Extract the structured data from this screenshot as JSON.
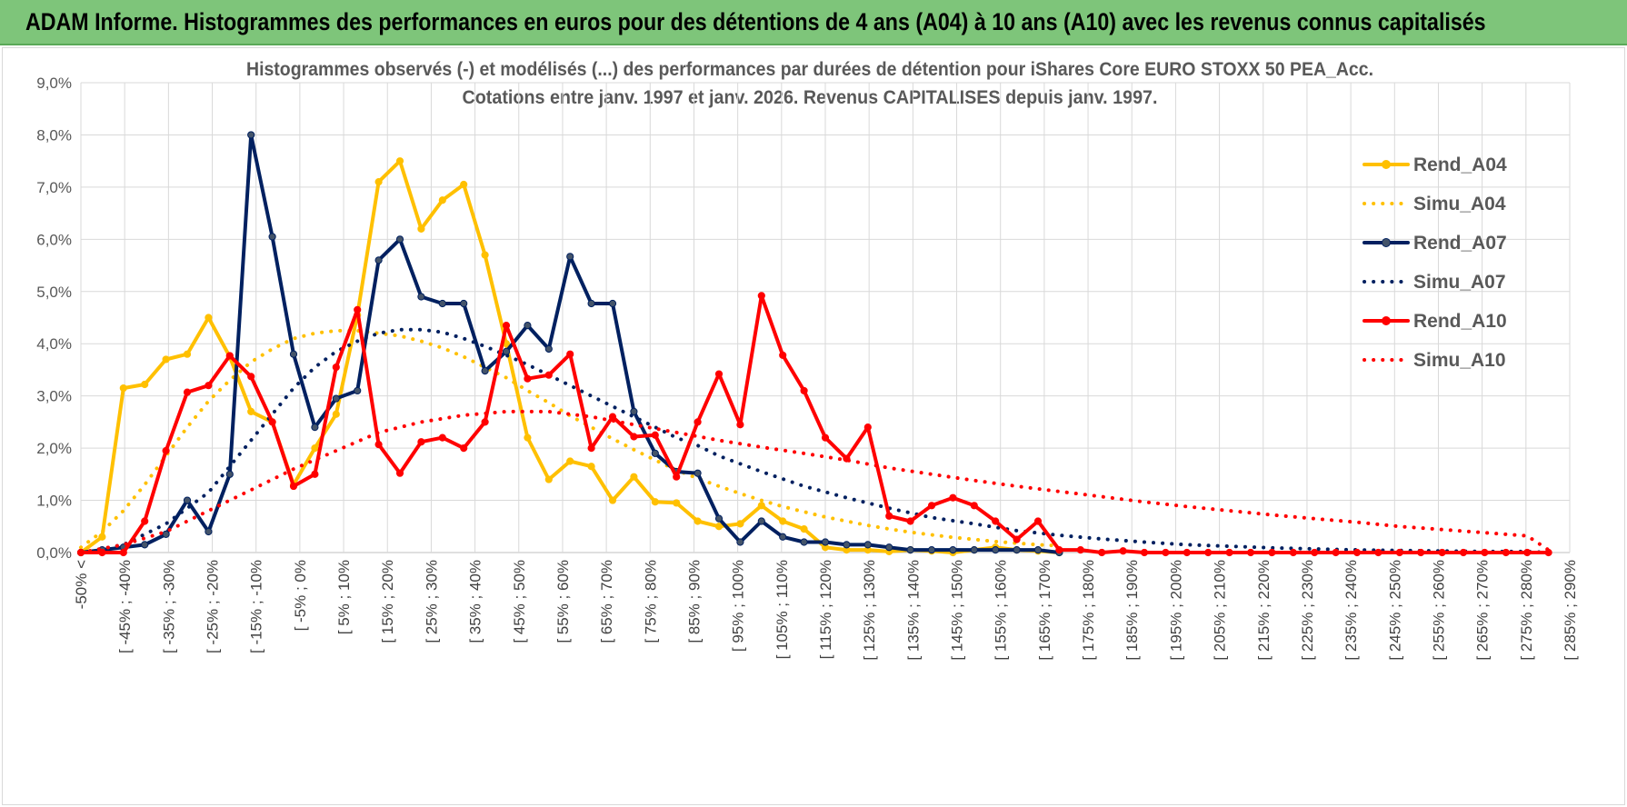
{
  "header": {
    "title": "ADAM Informe. Histogrammes des performances en euros pour des détentions de 4 ans (A04) à 10 ans (A10) avec les revenus connus capitalisés"
  },
  "chart_data": {
    "type": "line",
    "title": "Histogrammes observés (-) et modélisés (...) des performances par durées de détention pour iShares Core EURO STOXX 50 PEA_Acc.",
    "subtitle": "Cotations entre janv. 1997 et janv. 2026. Revenus CAPITALISES depuis janv. 1997.",
    "xlabel": "",
    "ylabel": "",
    "ylim": [
      0,
      9
    ],
    "y_ticks": [
      "0,0%",
      "1,0%",
      "2,0%",
      "3,0%",
      "4,0%",
      "5,0%",
      "6,0%",
      "7,0%",
      "8,0%",
      "9,0%"
    ],
    "grid": true,
    "legend_position": "right",
    "categories": [
      "-50% <",
      "[ -45% ; -40%",
      "[ -35% ; -30%",
      "[ -25% ; -20%",
      "[ -15% ; -10%",
      "[ -5% ; 0%",
      "[ 5% ; 10%",
      "[ 15% ; 20%",
      "[ 25% ; 30%",
      "[ 35% ; 40%",
      "[ 45% ; 50%",
      "[ 55% ; 60%",
      "[ 65% ; 70%",
      "[ 75% ; 80%",
      "[ 85% ; 90%",
      "[ 95% ; 100%",
      "[ 105% ; 110%",
      "[ 115% ; 120%",
      "[ 125% ; 130%",
      "[ 135% ; 140%",
      "[ 145% ; 150%",
      "[ 155% ; 160%",
      "[ 165% ; 170%",
      "[ 175% ; 180%",
      "[ 185% ; 190%",
      "[ 195% ; 200%",
      "[ 205% ; 210%",
      "[ 215% ; 220%",
      "[ 225% ; 230%",
      "[ 235% ; 240%",
      "[ 245% ; 250%",
      "[ 255% ; 260%",
      "[ 265% ; 270%",
      "[ 275% ; 280%",
      "[ 285% ; 290%"
    ],
    "x_range": [
      -50,
      300
    ],
    "series": [
      {
        "name": "Rend_A04",
        "color": "#ffc000",
        "style": "solid",
        "x": [
          -50,
          -45,
          -40,
          -35,
          -30,
          -25,
          -20,
          -15,
          -10,
          -5,
          0,
          5,
          10,
          15,
          20,
          25,
          30,
          35,
          40,
          45,
          50,
          55,
          60,
          65,
          70,
          75,
          80,
          85,
          90,
          95,
          100,
          105,
          110,
          115,
          120,
          125,
          130,
          135,
          140,
          145,
          150,
          155,
          160,
          165,
          170,
          175,
          180
        ],
        "y": [
          0.0,
          0.3,
          3.15,
          3.22,
          3.7,
          3.8,
          4.5,
          3.75,
          2.7,
          2.5,
          1.3,
          2.0,
          2.65,
          4.55,
          7.1,
          7.5,
          6.2,
          6.75,
          7.05,
          5.7,
          4.0,
          2.2,
          1.4,
          1.75,
          1.65,
          1.0,
          1.45,
          0.97,
          0.95,
          0.6,
          0.5,
          0.55,
          0.9,
          0.6,
          0.45,
          0.1,
          0.05,
          0.05,
          0.02,
          0.05,
          0.03,
          0.0,
          0.05,
          0.1,
          0.05,
          0.03,
          0.0
        ]
      },
      {
        "name": "Simu_A04",
        "color": "#ffc000",
        "style": "dotted",
        "x": [
          -50,
          -45,
          -40,
          -35,
          -30,
          -25,
          -20,
          -15,
          -10,
          -5,
          0,
          5,
          10,
          15,
          20,
          25,
          30,
          35,
          40,
          45,
          50,
          55,
          60,
          65,
          70,
          75,
          80,
          85,
          90,
          95,
          100,
          105,
          110,
          115,
          120,
          125,
          130,
          135,
          140,
          145,
          150,
          155,
          160,
          165,
          170,
          175,
          180
        ],
        "y": [
          0.1,
          0.4,
          0.8,
          1.3,
          1.85,
          2.4,
          2.9,
          3.3,
          3.65,
          3.9,
          4.1,
          4.2,
          4.25,
          4.25,
          4.2,
          4.15,
          4.05,
          3.92,
          3.75,
          3.55,
          3.35,
          3.1,
          2.87,
          2.62,
          2.4,
          2.18,
          1.97,
          1.77,
          1.58,
          1.42,
          1.27,
          1.13,
          1.0,
          0.88,
          0.78,
          0.68,
          0.6,
          0.52,
          0.45,
          0.39,
          0.34,
          0.29,
          0.25,
          0.21,
          0.18,
          0.15,
          0.13
        ]
      },
      {
        "name": "Rend_A07",
        "color": "#002060",
        "style": "solid",
        "x": [
          -50,
          -45,
          -40,
          -35,
          -30,
          -25,
          -20,
          -15,
          -10,
          -5,
          0,
          5,
          10,
          15,
          20,
          25,
          30,
          35,
          40,
          45,
          50,
          55,
          60,
          65,
          70,
          75,
          80,
          85,
          90,
          95,
          100,
          105,
          110,
          115,
          120,
          125,
          130,
          135,
          140,
          145,
          150,
          155,
          160,
          165,
          170,
          175,
          180
        ],
        "y": [
          0.0,
          0.05,
          0.1,
          0.15,
          0.35,
          1.0,
          0.4,
          1.5,
          8.0,
          6.05,
          3.8,
          2.4,
          2.95,
          3.1,
          5.6,
          6.0,
          4.9,
          4.77,
          4.77,
          3.48,
          3.85,
          4.35,
          3.9,
          5.67,
          4.77,
          4.77,
          2.7,
          1.9,
          1.55,
          1.52,
          0.65,
          0.2,
          0.6,
          0.3,
          0.2,
          0.2,
          0.15,
          0.15,
          0.1,
          0.05,
          0.05,
          0.05,
          0.05,
          0.05,
          0.05,
          0.05,
          0.0
        ]
      },
      {
        "name": "Simu_A07",
        "color": "#002060",
        "style": "dotted",
        "x": [
          -50,
          -40,
          -30,
          -20,
          -10,
          0,
          5,
          10,
          15,
          20,
          25,
          30,
          35,
          40,
          45,
          50,
          55,
          60,
          65,
          70,
          75,
          80,
          85,
          90,
          95,
          100,
          110,
          120,
          130,
          140,
          150,
          160,
          170,
          180,
          190,
          200,
          210,
          220,
          230,
          240,
          250,
          260,
          270,
          280,
          290,
          295
        ],
        "y": [
          0.0,
          0.15,
          0.55,
          1.15,
          2.15,
          3.15,
          3.55,
          3.85,
          4.05,
          4.2,
          4.27,
          4.27,
          4.22,
          4.1,
          3.95,
          3.78,
          3.6,
          3.4,
          3.2,
          3.0,
          2.8,
          2.6,
          2.4,
          2.2,
          2.05,
          1.85,
          1.55,
          1.27,
          1.05,
          0.85,
          0.67,
          0.55,
          0.42,
          0.33,
          0.26,
          0.2,
          0.15,
          0.12,
          0.09,
          0.07,
          0.05,
          0.04,
          0.03,
          0.02,
          0.02,
          0.0
        ]
      },
      {
        "name": "Rend_A10",
        "color": "#ff0000",
        "style": "solid",
        "x": [
          -50,
          -45,
          -40,
          -35,
          -30,
          -25,
          -20,
          -15,
          -10,
          -5,
          0,
          5,
          10,
          15,
          20,
          25,
          30,
          35,
          40,
          45,
          50,
          55,
          60,
          65,
          70,
          75,
          80,
          85,
          90,
          95,
          100,
          105,
          110,
          115,
          120,
          125,
          130,
          135,
          140,
          145,
          150,
          155,
          160,
          165,
          170,
          175,
          180,
          185,
          190,
          195,
          200,
          205,
          210,
          215,
          220,
          225,
          230,
          235,
          240,
          245,
          250,
          255,
          260,
          265,
          270,
          275,
          280,
          285,
          290,
          295
        ],
        "y": [
          0.0,
          0.0,
          0.0,
          0.6,
          1.95,
          3.07,
          3.2,
          3.77,
          3.37,
          2.5,
          1.27,
          1.5,
          3.55,
          4.65,
          2.07,
          1.52,
          2.12,
          2.2,
          2.0,
          2.5,
          4.35,
          3.33,
          3.4,
          3.8,
          2.0,
          2.6,
          2.22,
          2.25,
          1.45,
          2.5,
          3.42,
          2.45,
          4.92,
          3.78,
          3.1,
          2.2,
          1.8,
          2.4,
          0.7,
          0.6,
          0.9,
          1.05,
          0.9,
          0.6,
          0.25,
          0.6,
          0.05,
          0.05,
          0.0,
          0.03,
          0.0,
          0.0,
          0.0,
          0.0,
          0.0,
          0.0,
          0.0,
          0.0,
          0.0,
          0.0,
          0.0,
          0.0,
          0.0,
          0.0,
          0.0,
          0.0,
          0.0,
          0.0,
          0.0,
          0.0
        ]
      },
      {
        "name": "Simu_A10",
        "color": "#ff0000",
        "style": "dotted",
        "x": [
          -50,
          -40,
          -30,
          -20,
          -10,
          0,
          10,
          20,
          30,
          40,
          50,
          60,
          70,
          80,
          90,
          100,
          110,
          120,
          130,
          140,
          150,
          160,
          170,
          180,
          190,
          200,
          210,
          220,
          230,
          240,
          250,
          260,
          270,
          280,
          290,
          295
        ],
        "y": [
          0.0,
          0.15,
          0.4,
          0.8,
          1.2,
          1.6,
          1.95,
          2.3,
          2.5,
          2.63,
          2.7,
          2.7,
          2.6,
          2.45,
          2.3,
          2.15,
          2.02,
          1.9,
          1.77,
          1.62,
          1.5,
          1.38,
          1.27,
          1.17,
          1.07,
          0.97,
          0.88,
          0.8,
          0.72,
          0.65,
          0.58,
          0.5,
          0.44,
          0.38,
          0.32,
          0.05
        ]
      }
    ]
  }
}
